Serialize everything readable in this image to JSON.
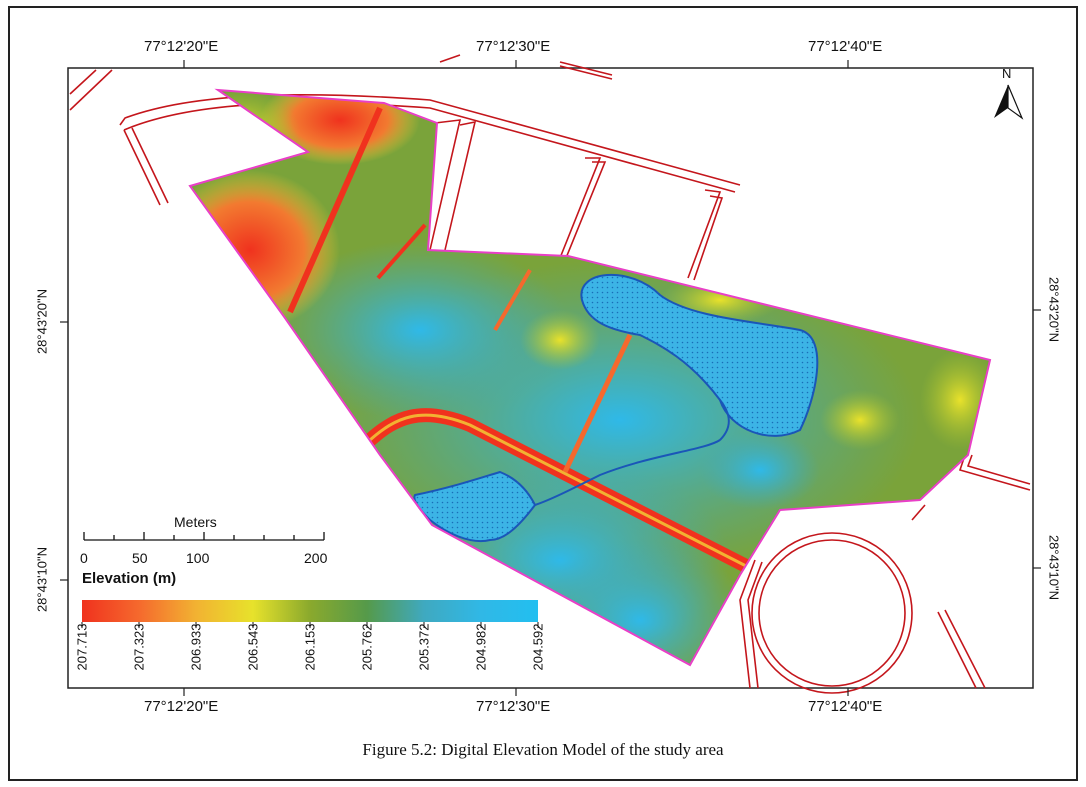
{
  "map": {
    "top_longitudes": [
      "77°12'20\"E",
      "77°12'30\"E",
      "77°12'40\"E"
    ],
    "bottom_longitudes": [
      "77°12'20\"E",
      "77°12'30\"E",
      "77°12'40\"E"
    ],
    "left_latitudes": [
      "28°43'20\"N",
      "28°43'10\"N"
    ],
    "right_latitudes": [
      "28°43'20\"N",
      "28°43'10\"N"
    ],
    "north_label": "N"
  },
  "scale_bar": {
    "title": "Meters",
    "ticks": [
      "0",
      "50",
      "100",
      "200"
    ]
  },
  "legend": {
    "title": "Elevation (m)",
    "values": [
      "207.713",
      "207.323",
      "206.933",
      "206.543",
      "206.153",
      "205.762",
      "205.372",
      "204.982",
      "204.592"
    ],
    "colors": [
      "#f0321e",
      "#f5692d",
      "#f2b232",
      "#e7e22b",
      "#8aa92d",
      "#559a4a",
      "#3fa9c0",
      "#30b8e6",
      "#22bff0"
    ]
  },
  "caption": "Figure 5.2: Digital Elevation Model of the study area"
}
